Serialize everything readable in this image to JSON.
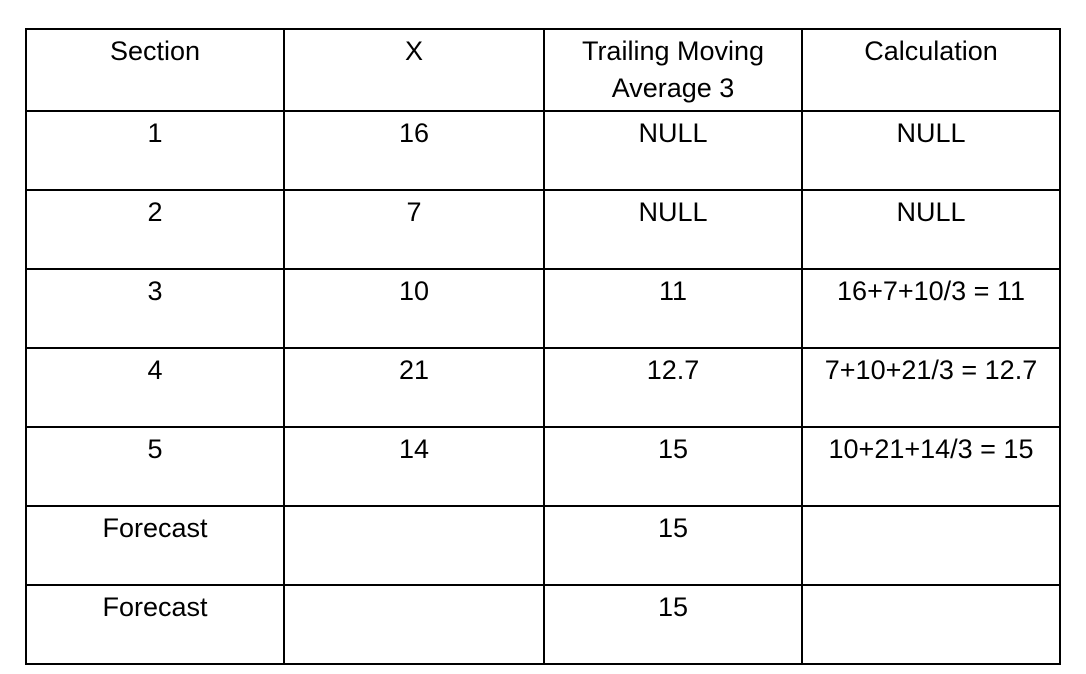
{
  "table": {
    "headers": {
      "section": "Section",
      "x": "X",
      "avg_line1": "Trailing Moving",
      "avg_line2": "Average 3",
      "calculation": "Calculation"
    },
    "rows": [
      {
        "section": "1",
        "x": "16",
        "avg": "NULL",
        "calculation": "NULL"
      },
      {
        "section": "2",
        "x": "7",
        "avg": "NULL",
        "calculation": "NULL"
      },
      {
        "section": "3",
        "x": "10",
        "avg": "11",
        "calculation": "16+7+10/3 = 11"
      },
      {
        "section": "4",
        "x": "21",
        "avg": "12.7",
        "calculation": "7+10+21/3 = 12.7"
      },
      {
        "section": "5",
        "x": "14",
        "avg": "15",
        "calculation": "10+21+14/3 = 15"
      },
      {
        "section": "Forecast",
        "x": "",
        "avg": "15",
        "calculation": ""
      },
      {
        "section": "Forecast",
        "x": "",
        "avg": "15",
        "calculation": ""
      }
    ]
  }
}
